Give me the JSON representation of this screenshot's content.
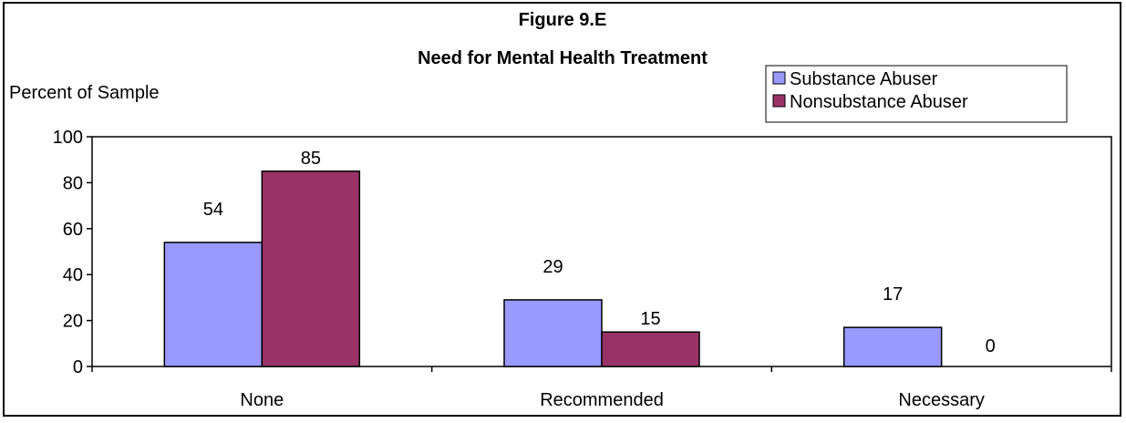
{
  "chart_data": {
    "type": "bar",
    "title": "Figure 9.E",
    "subtitle": "Need for Mental Health Treatment",
    "ylabel": "Percent of Sample",
    "xlabel": "",
    "categories": [
      "None",
      "Recommended",
      "Necessary"
    ],
    "series": [
      {
        "name": "Substance Abuser",
        "values": [
          54,
          29,
          17
        ],
        "color": "#9999ff"
      },
      {
        "name": "Nonsubstance Abuser",
        "values": [
          85,
          15,
          0
        ],
        "color": "#993366"
      }
    ],
    "ylim": [
      0,
      100
    ],
    "yticks": [
      0,
      20,
      40,
      60,
      80,
      100
    ],
    "grid": false,
    "legend_position": "top-right",
    "data_labels": true
  }
}
